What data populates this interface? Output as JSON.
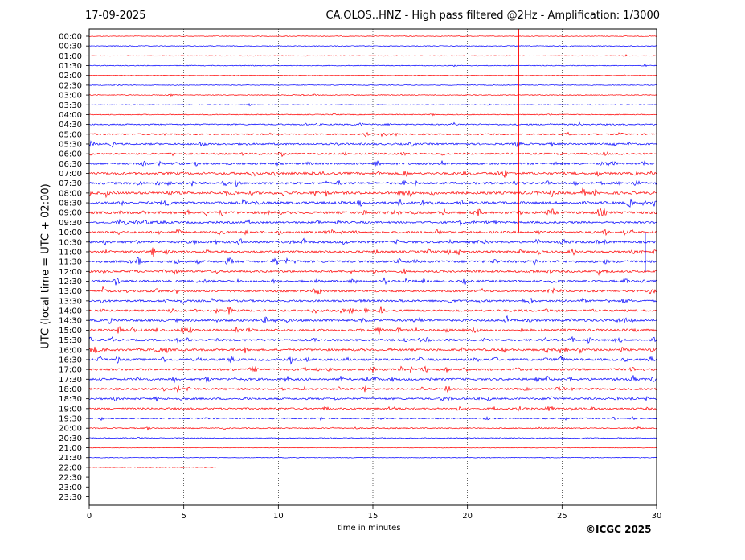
{
  "header": {
    "date": "17-09-2025",
    "title": "CA.OLOS..HNZ - High pass filtered @2Hz - Amplification: 1/3000"
  },
  "footer": {
    "copyright": "©ICGC 2025"
  },
  "chart_data": {
    "type": "line",
    "title": "CA.OLOS..HNZ - High pass filtered @2Hz - Amplification: 1/3000",
    "xlabel": "time in minutes",
    "ylabel": "UTC (local time = UTC + 02:00)",
    "xlim": [
      0,
      30
    ],
    "x_ticks": [
      "0",
      "5",
      "10",
      "15",
      "20",
      "25",
      "30"
    ],
    "y_ticks": [
      "00:00",
      "00:30",
      "01:00",
      "01:30",
      "02:00",
      "02:30",
      "03:00",
      "03:30",
      "04:00",
      "04:30",
      "05:00",
      "05:30",
      "06:00",
      "06:30",
      "07:00",
      "07:30",
      "08:00",
      "08:30",
      "09:00",
      "09:30",
      "10:00",
      "10:30",
      "11:00",
      "11:30",
      "12:00",
      "12:30",
      "13:00",
      "13:30",
      "14:00",
      "14:30",
      "15:00",
      "15:30",
      "16:00",
      "16:30",
      "17:00",
      "17:30",
      "18:00",
      "18:30",
      "19:00",
      "19:30",
      "20:00",
      "20:30",
      "21:00",
      "21:30",
      "22:00",
      "22:30",
      "23:00",
      "23:30"
    ],
    "x_grid": true,
    "trace_colors": [
      "#ff0000",
      "#0000ff"
    ],
    "activity": [
      0.05,
      0.08,
      0.06,
      0.1,
      0.04,
      0.05,
      0.12,
      0.1,
      0.15,
      0.35,
      0.45,
      0.6,
      0.55,
      0.7,
      0.85,
      0.8,
      0.95,
      0.9,
      0.95,
      0.7,
      0.8,
      0.8,
      0.75,
      0.85,
      0.7,
      0.75,
      0.7,
      0.7,
      0.75,
      0.8,
      0.85,
      0.75,
      0.8,
      0.85,
      0.75,
      0.8,
      0.7,
      0.65,
      0.6,
      0.35,
      0.25,
      0.15,
      0.02,
      0.02,
      0.02,
      0,
      0,
      0
    ],
    "trace_end_minutes": [
      30,
      30,
      30,
      30,
      30,
      30,
      30,
      30,
      30,
      30,
      30,
      30,
      30,
      30,
      30,
      30,
      30,
      30,
      30,
      30,
      30,
      30,
      30,
      30,
      30,
      30,
      30,
      30,
      30,
      30,
      30,
      30,
      30,
      30,
      30,
      30,
      30,
      30,
      30,
      30,
      30,
      30,
      30,
      30,
      6.7,
      0,
      0,
      0
    ]
  }
}
